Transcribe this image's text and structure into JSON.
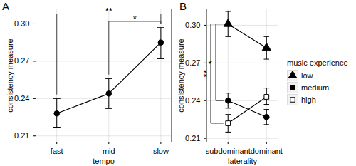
{
  "chart_data": [
    {
      "type": "line",
      "title": "A",
      "categories": [
        "fast",
        "mid",
        "slow"
      ],
      "x_label": "tempo",
      "y_label": "consistency measure",
      "values": [
        0.228,
        0.244,
        0.285
      ],
      "lower": [
        0.217,
        0.232,
        0.272
      ],
      "upper": [
        0.24,
        0.256,
        0.297
      ],
      "color": "#000000",
      "marker": "circle",
      "ylim": [
        0.205,
        0.312
      ],
      "yticks": [
        0.21,
        0.24,
        0.27,
        {
          "value": 0.3,
          "label": "0.30"
        }
      ],
      "grid": true,
      "annotations": [
        {
          "text": "**",
          "from": "fast",
          "to": "slow",
          "y": 0.308
        },
        {
          "text": "*",
          "from": "mid",
          "to": "slow",
          "y": 0.302
        }
      ]
    },
    {
      "type": "line",
      "title": "B",
      "categories": [
        "subdominant",
        "dominant"
      ],
      "x_label": "laterality",
      "y_label": "consistency measure",
      "legend_title": "music experience",
      "legend": "right",
      "series": [
        {
          "name": "low",
          "color": "#000000",
          "marker": "triangle",
          "values": [
            0.301,
            0.282
          ],
          "lower": [
            0.291,
            0.273
          ],
          "upper": [
            0.311,
            0.291
          ]
        },
        {
          "name": "medium",
          "color": "#000000",
          "marker": "circle",
          "values": [
            0.24,
            0.227
          ],
          "lower": [
            0.234,
            0.221
          ],
          "upper": [
            0.246,
            0.233
          ]
        },
        {
          "name": "high",
          "color": "#000000",
          "marker": "square-open",
          "values": [
            0.222,
            0.243
          ],
          "lower": [
            0.215,
            0.237
          ],
          "upper": [
            0.229,
            0.25
          ]
        }
      ],
      "ylim": [
        0.207,
        0.313
      ],
      "yticks": [
        0.21,
        0.24,
        0.27,
        {
          "value": 0.3,
          "label": "0.30"
        }
      ],
      "grid": true,
      "annotations": [
        {
          "text": "**",
          "from": "low",
          "to": "high",
          "at": "subdominant"
        },
        {
          "text": "*",
          "from": "low",
          "to": "medium",
          "at": "subdominant"
        }
      ]
    }
  ]
}
